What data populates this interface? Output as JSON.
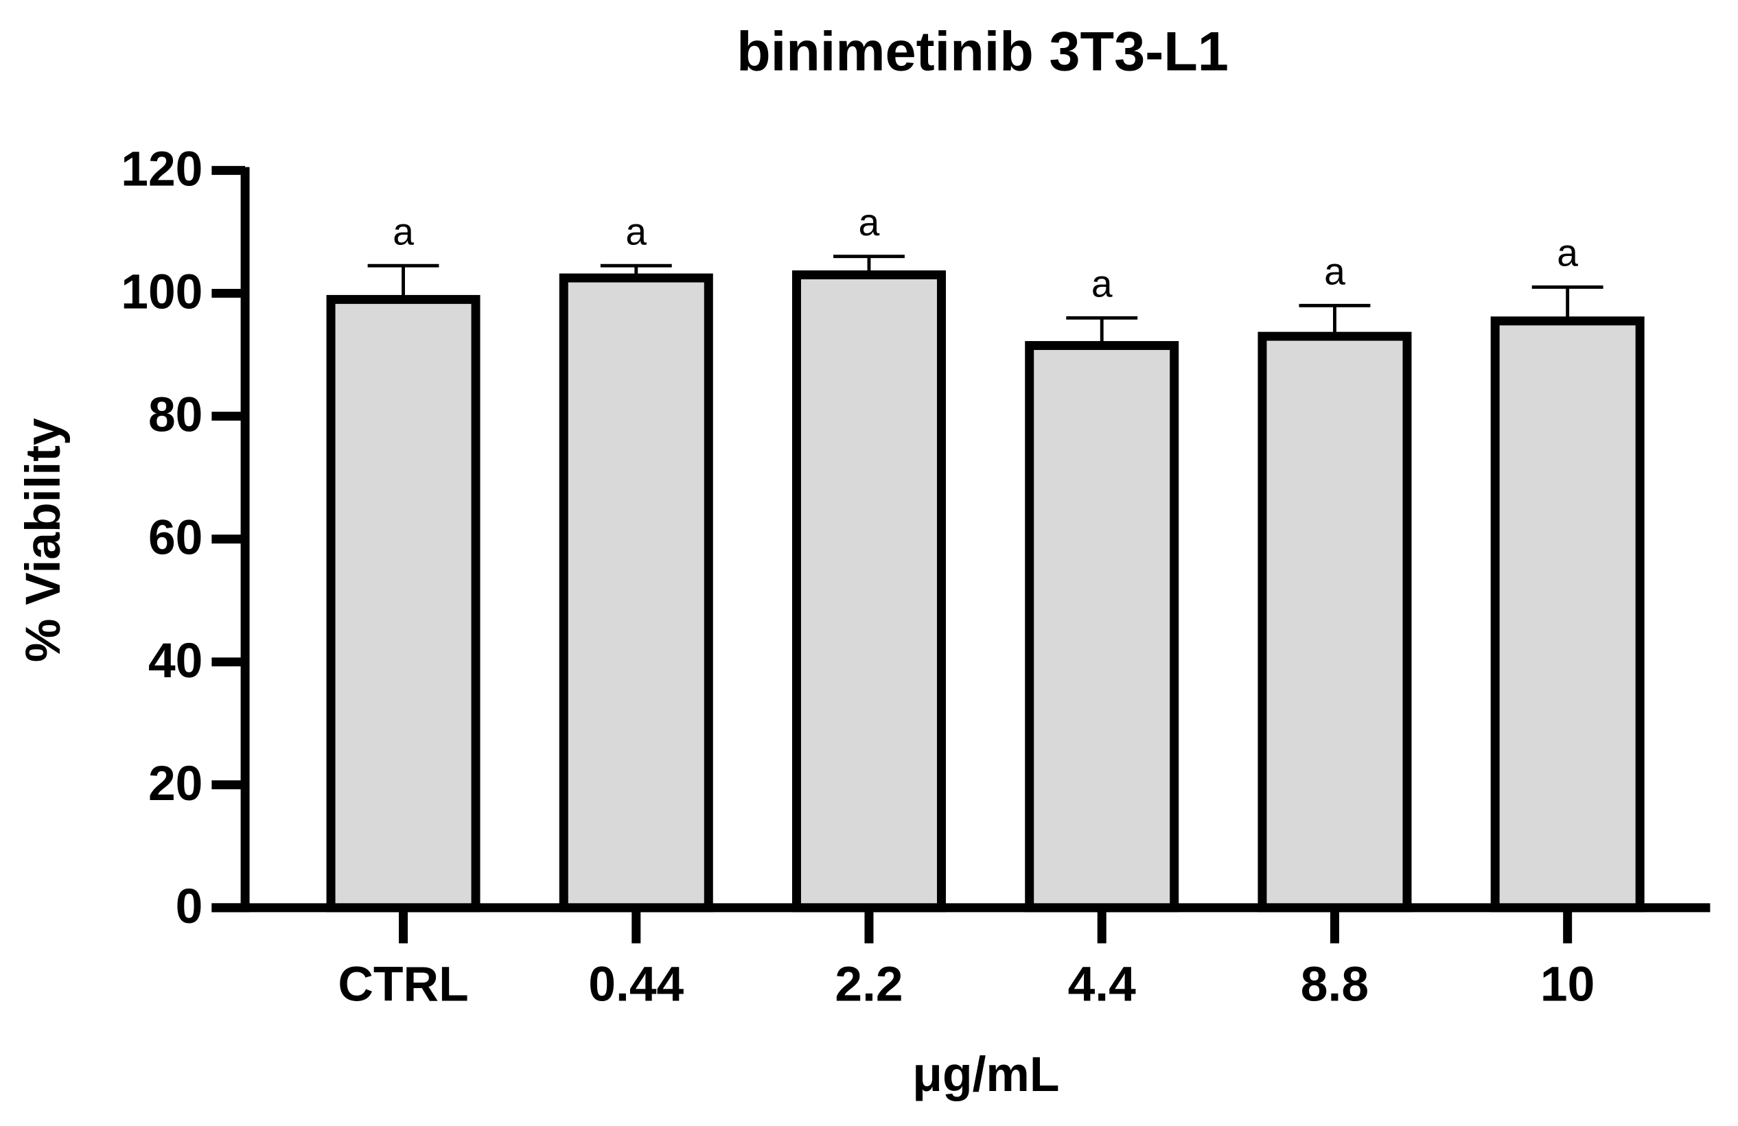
{
  "chart_data": {
    "type": "bar",
    "title": "binimetinib 3T3-L1",
    "x_label": "μg/mL",
    "y_label": "% Viability",
    "categories": [
      "CTRL",
      "0.44",
      "2.2",
      "4.4",
      "8.8",
      "10"
    ],
    "values": [
      99,
      102.5,
      103,
      91.5,
      93,
      95.5
    ],
    "errors": [
      5.5,
      2,
      3,
      4.5,
      5,
      5.5
    ],
    "annotations": [
      "a",
      "a",
      "a",
      "a",
      "a",
      "a"
    ],
    "color": "#d9d9d9",
    "edge_color": "#000000",
    "ylim": [
      0,
      120
    ],
    "yticks": [
      0,
      20,
      40,
      60,
      80,
      100,
      120
    ],
    "grid": false
  }
}
